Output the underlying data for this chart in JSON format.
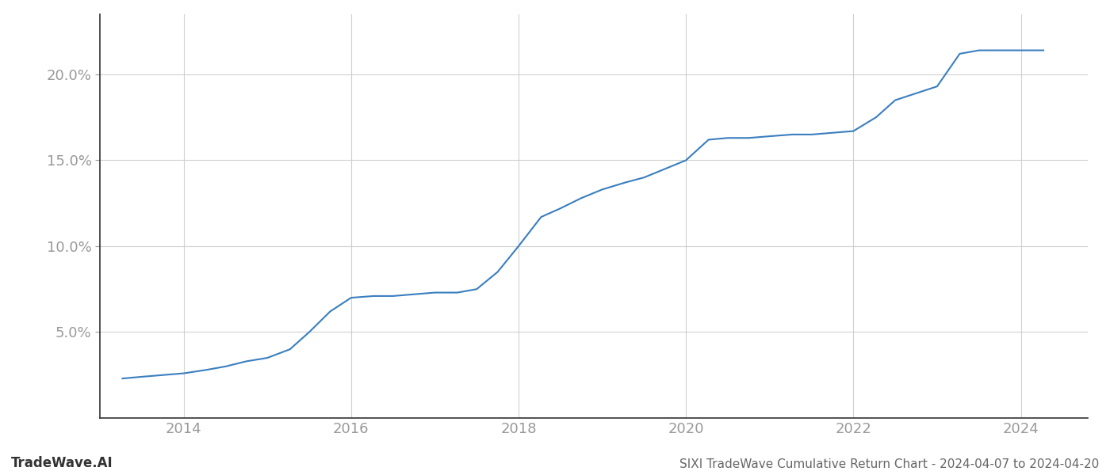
{
  "title": "SIXI TradeWave Cumulative Return Chart - 2024-04-07 to 2024-04-20",
  "watermark": "TradeWave.AI",
  "line_color": "#3a7ebf",
  "line_width": 1.5,
  "background_color": "#ffffff",
  "grid_color": "#cccccc",
  "x_values": [
    2013.27,
    2013.5,
    2013.75,
    2014.0,
    2014.27,
    2014.5,
    2014.75,
    2015.0,
    2015.27,
    2015.5,
    2015.75,
    2016.0,
    2016.27,
    2016.5,
    2016.75,
    2017.0,
    2017.27,
    2017.5,
    2017.75,
    2018.0,
    2018.27,
    2018.5,
    2018.75,
    2019.0,
    2019.27,
    2019.5,
    2019.75,
    2020.0,
    2020.27,
    2020.5,
    2020.75,
    2021.0,
    2021.27,
    2021.5,
    2021.75,
    2022.0,
    2022.27,
    2022.5,
    2022.75,
    2023.0,
    2023.27,
    2023.5,
    2023.75,
    2024.0,
    2024.27
  ],
  "y_values": [
    2.3,
    2.4,
    2.5,
    2.6,
    2.8,
    3.0,
    3.3,
    3.5,
    4.0,
    5.0,
    6.2,
    7.0,
    7.1,
    7.1,
    7.2,
    7.3,
    7.3,
    7.5,
    8.5,
    10.0,
    11.7,
    12.2,
    12.8,
    13.3,
    13.7,
    14.0,
    14.5,
    15.0,
    16.2,
    16.3,
    16.3,
    16.4,
    16.5,
    16.5,
    16.6,
    16.7,
    17.5,
    18.5,
    18.9,
    19.3,
    21.2,
    21.4,
    21.4,
    21.4,
    21.4
  ],
  "xlim": [
    2013.0,
    2024.8
  ],
  "ylim": [
    0.0,
    23.5
  ],
  "yticks": [
    5.0,
    10.0,
    15.0,
    20.0
  ],
  "ytick_labels": [
    "5.0%",
    "10.0%",
    "15.0%",
    "20.0%"
  ],
  "xticks": [
    2014,
    2016,
    2018,
    2020,
    2022,
    2024
  ],
  "tick_color": "#999999",
  "tick_fontsize": 13,
  "title_fontsize": 11,
  "watermark_fontsize": 12,
  "spine_color": "#333333"
}
